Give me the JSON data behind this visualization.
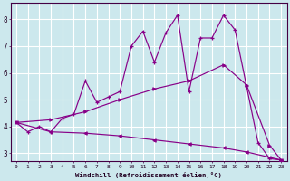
{
  "background_color": "#cce8ed",
  "grid_color": "#ffffff",
  "line_color": "#880088",
  "xlabel": "Windchill (Refroidissement éolien,°C)",
  "xlim": [
    -0.5,
    23.5
  ],
  "ylim": [
    2.7,
    8.6
  ],
  "yticks": [
    3,
    4,
    5,
    6,
    7,
    8
  ],
  "xticks": [
    0,
    1,
    2,
    3,
    4,
    5,
    6,
    7,
    8,
    9,
    10,
    11,
    12,
    13,
    14,
    15,
    16,
    17,
    18,
    19,
    20,
    21,
    22,
    23
  ],
  "line1_x": [
    0,
    1,
    2,
    3,
    4,
    5,
    6,
    7,
    8,
    9,
    10,
    11,
    12,
    13,
    14,
    15,
    16,
    17,
    18,
    19,
    20,
    21,
    22,
    23
  ],
  "line1_y": [
    4.15,
    3.8,
    4.0,
    3.8,
    4.3,
    4.45,
    5.7,
    4.9,
    5.1,
    5.3,
    7.0,
    7.55,
    6.4,
    7.5,
    8.15,
    5.3,
    7.3,
    7.3,
    8.15,
    7.6,
    5.5,
    3.4,
    2.8,
    2.75
  ],
  "line2_x": [
    0,
    3,
    6,
    9,
    12,
    15,
    18,
    20,
    22,
    23
  ],
  "line2_y": [
    4.15,
    4.25,
    4.55,
    5.0,
    5.4,
    5.7,
    6.3,
    5.55,
    3.3,
    2.75
  ],
  "line3_x": [
    0,
    3,
    6,
    9,
    12,
    15,
    18,
    20,
    22,
    23
  ],
  "line3_y": [
    4.15,
    3.8,
    3.75,
    3.65,
    3.5,
    3.35,
    3.2,
    3.05,
    2.85,
    2.75
  ]
}
